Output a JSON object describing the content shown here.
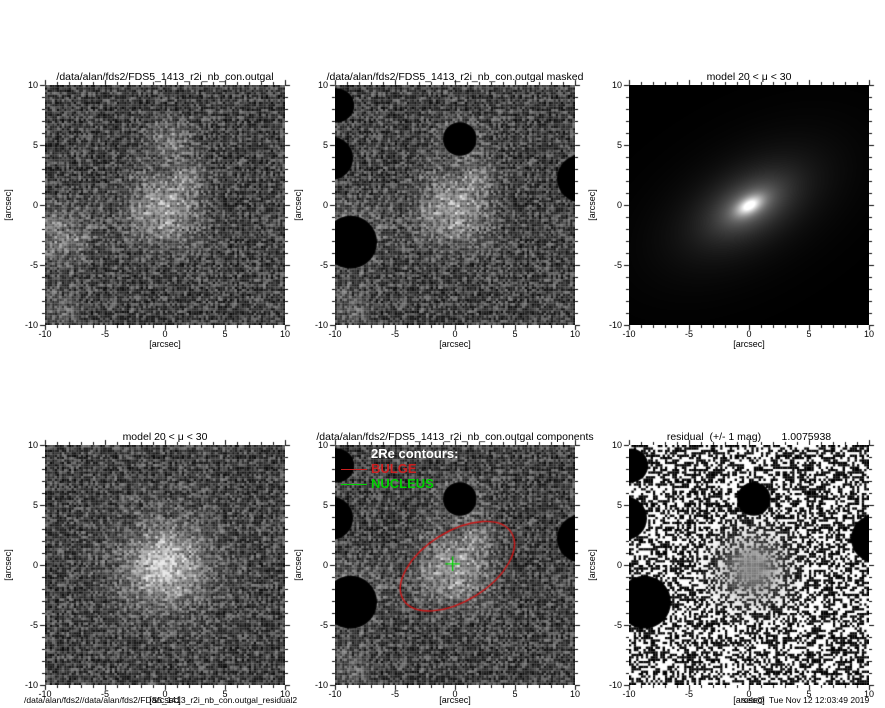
{
  "axis": {
    "xlabel": "[arcsec]",
    "ylabel": "[arcsec]",
    "xticks": [
      "-10",
      "-5",
      "0",
      "5",
      "10"
    ],
    "yticks": [
      "10",
      "5",
      "0",
      "-5",
      "-10"
    ],
    "xlim": [
      -10,
      10
    ],
    "ylim": [
      -10,
      10
    ]
  },
  "panels": [
    {
      "title": "/data/alan/fds2/FDS5_1413_r2i_nb_con.outgal"
    },
    {
      "title": "/data/alan/fds2/FDS5_1413_r2i_nb_con.outgal masked"
    },
    {
      "title": "model 20 < μ < 30"
    },
    {
      "title": "model 20 < μ < 30"
    },
    {
      "title": "/data/alan/fds2/FDS5_1413_r2i_nb_con.outgal components",
      "legend": {
        "header": "2Re contours:",
        "entries": [
          {
            "label": "BULGE",
            "color": "#cc2020"
          },
          {
            "label": "NUCLEUS",
            "color": "#00d400"
          }
        ]
      }
    },
    {
      "title": "residual  (+/- 1 mag)       1.0075938"
    }
  ],
  "footer": {
    "left_path": "/data/alan/fds2//data/alan/fds2/FDS5_1413_r2i_nb_con.outgal_residual2",
    "user": "seb@",
    "timestamp": "Tue Nov 12 12:03:49 2019"
  },
  "colors": {
    "bulge_contour": "#cc1616",
    "nucleus_marker": "#00d400",
    "mask": "#000000",
    "legend_header": "#ffffff"
  },
  "chart_data": [
    {
      "panel": 1,
      "type": "heatmap",
      "colormap": "grayscale",
      "title": "/data/alan/fds2/FDS5_1413_r2i_nb_con.outgal",
      "xlabel": "[arcsec]",
      "ylabel": "[arcsec]",
      "xlim": [
        -10,
        10
      ],
      "ylim": [
        -10,
        10
      ],
      "description": "observed galaxy cutout: sky noise plus diffuse sources",
      "render": {
        "kind": "noise",
        "seed": 42,
        "blobs": [
          {
            "x": -0.2,
            "y": -0.4,
            "r": 2.0,
            "amp": 95
          },
          {
            "x": 2.0,
            "y": 2.3,
            "r": 1.0,
            "amp": 45
          },
          {
            "x": 0.4,
            "y": 5.5,
            "r": 1.2,
            "amp": 55
          },
          {
            "x": -8.6,
            "y": -2.6,
            "r": 1.7,
            "amp": 60
          },
          {
            "x": -8.8,
            "y": -8.5,
            "r": 1.2,
            "amp": 30
          }
        ]
      }
    },
    {
      "panel": 2,
      "type": "heatmap",
      "colormap": "grayscale",
      "title": "/data/alan/fds2/FDS5_1413_r2i_nb_con.outgal masked",
      "xlabel": "[arcsec]",
      "ylabel": "[arcsec]",
      "xlim": [
        -10,
        10
      ],
      "ylim": [
        -10,
        10
      ],
      "description": "same image with circular masks over contaminating sources",
      "render": {
        "kind": "noise",
        "seed": 42,
        "blobs": [
          {
            "x": -0.2,
            "y": -0.4,
            "r": 2.0,
            "amp": 95
          },
          {
            "x": 2.0,
            "y": 2.3,
            "r": 1.0,
            "amp": 45
          },
          {
            "x": 0.4,
            "y": 5.5,
            "r": 1.2,
            "amp": 55
          },
          {
            "x": -8.6,
            "y": -2.6,
            "r": 1.7,
            "amp": 60
          },
          {
            "x": -8.8,
            "y": -8.5,
            "r": 1.2,
            "amp": 30
          }
        ],
        "masks": [
          [
            0.4,
            5.5,
            1.4
          ],
          [
            -10.3,
            3.9,
            1.8
          ],
          [
            10.5,
            2.2,
            2.0
          ],
          [
            -8.7,
            -3.1,
            2.2
          ],
          [
            -9.8,
            8.3,
            1.4
          ]
        ]
      }
    },
    {
      "panel": 3,
      "type": "heatmap",
      "colormap": "grayscale",
      "title": "model 20 < μ < 30",
      "xlabel": "[arcsec]",
      "ylabel": "[arcsec]",
      "xlim": [
        -10,
        10
      ],
      "ylim": [
        -10,
        10
      ],
      "description": "smooth 2D model, surface brightness 20 < mu < 30",
      "mu_range": [
        20,
        30
      ],
      "model": {
        "center": [
          0,
          0
        ],
        "pa_deg": 30,
        "axis_ratio": 0.55,
        "extent_arcsec": 8
      },
      "render": {
        "kind": "model"
      }
    },
    {
      "panel": 4,
      "type": "heatmap",
      "colormap": "grayscale",
      "title": "model 20 < μ < 30",
      "xlabel": "[arcsec]",
      "ylabel": "[arcsec]",
      "xlim": [
        -10,
        10
      ],
      "ylim": [
        -10,
        10
      ],
      "description": "model realization with noise",
      "mu_range": [
        20,
        30
      ],
      "render": {
        "kind": "noise",
        "seed": 7,
        "blobs": [
          {
            "x": 0,
            "y": 0,
            "r": 1.7,
            "amp": 110
          },
          {
            "x": 0,
            "y": 0,
            "r": 3.4,
            "amp": 45
          }
        ]
      }
    },
    {
      "panel": 5,
      "type": "heatmap",
      "colormap": "grayscale",
      "title": "/data/alan/fds2/FDS5_1413_r2i_nb_con.outgal components",
      "xlabel": "[arcsec]",
      "ylabel": "[arcsec]",
      "xlim": [
        -10,
        10
      ],
      "ylim": [
        -10,
        10
      ],
      "description": "masked image with 2Re component contours overplotted",
      "bulge_ellipse": {
        "cx": 0.2,
        "cy": -0.1,
        "a": 5.3,
        "b": 2.9,
        "pa_deg": 32,
        "color": "#cc1616"
      },
      "nucleus_marker": {
        "x": -0.2,
        "y": 0.1,
        "size_arcsec": 0.6,
        "color": "#00d400"
      },
      "render": {
        "kind": "noise",
        "seed": 42,
        "blobs": [
          {
            "x": -0.2,
            "y": -0.4,
            "r": 2.0,
            "amp": 95
          },
          {
            "x": 2.0,
            "y": 2.3,
            "r": 1.0,
            "amp": 45
          },
          {
            "x": 0.4,
            "y": 5.5,
            "r": 1.2,
            "amp": 55
          },
          {
            "x": -8.6,
            "y": -2.6,
            "r": 1.7,
            "amp": 60
          },
          {
            "x": -8.8,
            "y": -8.5,
            "r": 1.2,
            "amp": 30
          }
        ],
        "masks": [
          [
            0.4,
            5.5,
            1.4
          ],
          [
            -10.3,
            3.9,
            1.8
          ],
          [
            10.5,
            2.2,
            2.0
          ],
          [
            -8.7,
            -3.1,
            2.2
          ],
          [
            -9.8,
            8.3,
            1.4
          ]
        ]
      }
    },
    {
      "panel": 6,
      "type": "heatmap",
      "colormap": "binary",
      "title": "residual  (+/- 1 mag)       1.0075938",
      "residual_scale": "+/- 1 mag",
      "residual_value": "1.0075938",
      "xlabel": "[arcsec]",
      "ylabel": "[arcsec]",
      "xlim": [
        -10,
        10
      ],
      "ylim": [
        -10,
        10
      ],
      "description": "binary residual map with smooth gray patch at galaxy center and masks",
      "render": {
        "kind": "residual",
        "seed": 13,
        "patch": {
          "x": 0.3,
          "y": -0.3,
          "sigma": 1.8
        },
        "masks": [
          [
            0.4,
            5.5,
            1.4
          ],
          [
            -10.3,
            3.9,
            1.8
          ],
          [
            10.5,
            2.2,
            2.0
          ],
          [
            -8.7,
            -3.1,
            2.2
          ],
          [
            -9.8,
            8.3,
            1.4
          ]
        ]
      }
    }
  ]
}
